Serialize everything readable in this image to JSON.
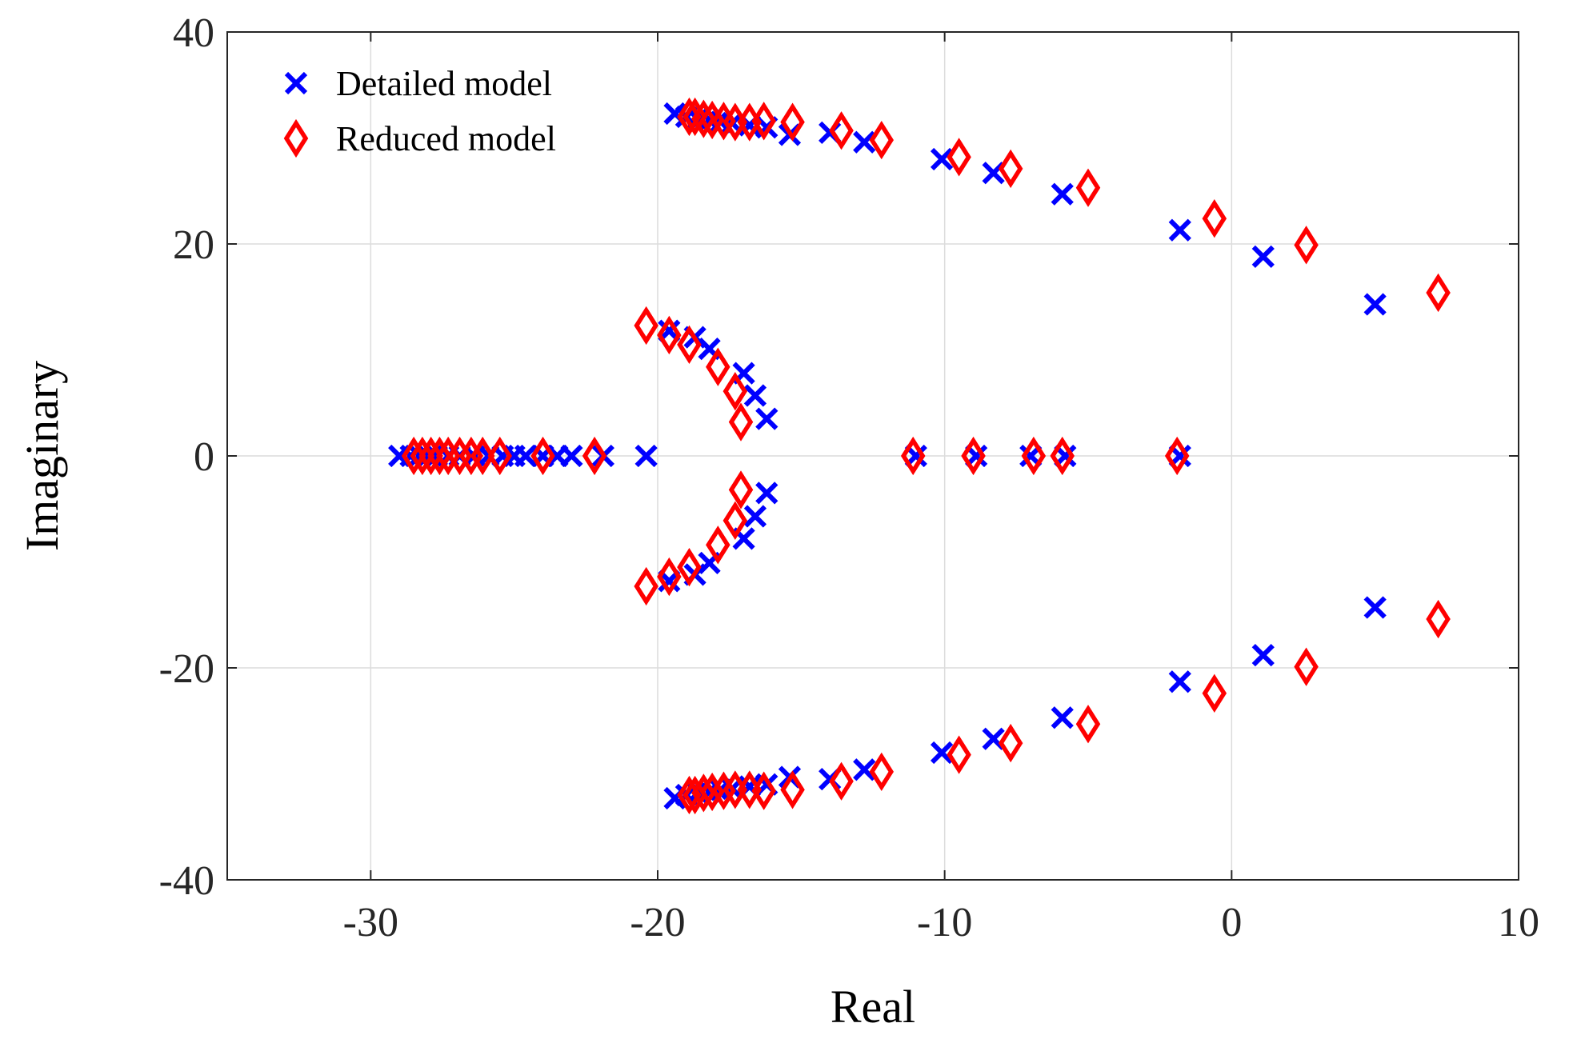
{
  "chart_data": {
    "type": "scatter",
    "title": "",
    "xlabel": "Real",
    "ylabel": "Imaginary",
    "xlim": [
      -35,
      10
    ],
    "ylim": [
      -40,
      40
    ],
    "xticks": [
      -30,
      -20,
      -10,
      0,
      10
    ],
    "yticks": [
      -40,
      -20,
      0,
      20,
      40
    ],
    "xtick_labels": [
      "-30",
      "-20",
      "-10",
      "0",
      "10"
    ],
    "ytick_labels": [
      "-40",
      "-20",
      "0",
      "20",
      "40"
    ],
    "grid": true,
    "legend_position": "top-left",
    "series": [
      {
        "name": "Detailed model",
        "marker": "x",
        "color": "#0000ff",
        "points": [
          [
            -29.0,
            0
          ],
          [
            -28.6,
            0
          ],
          [
            -28.3,
            0
          ],
          [
            -28.0,
            0
          ],
          [
            -27.7,
            0
          ],
          [
            -27.3,
            0
          ],
          [
            -26.9,
            0
          ],
          [
            -26.4,
            0
          ],
          [
            -25.9,
            0
          ],
          [
            -25.4,
            0
          ],
          [
            -25.0,
            0
          ],
          [
            -24.6,
            0
          ],
          [
            -24.0,
            0
          ],
          [
            -23.5,
            0
          ],
          [
            -23.0,
            0
          ],
          [
            -21.9,
            0
          ],
          [
            -20.4,
            0
          ],
          [
            -19.4,
            32.3
          ],
          [
            -19.0,
            32.0
          ],
          [
            -18.6,
            31.8
          ],
          [
            -18.2,
            31.7
          ],
          [
            -17.8,
            31.5
          ],
          [
            -17.4,
            31.4
          ],
          [
            -16.8,
            31.2
          ],
          [
            -16.2,
            31.0
          ],
          [
            -15.4,
            30.3
          ],
          [
            -14.0,
            30.5
          ],
          [
            -12.8,
            29.6
          ],
          [
            -10.1,
            28.0
          ],
          [
            -8.3,
            26.7
          ],
          [
            -5.9,
            24.7
          ],
          [
            -1.8,
            21.3
          ],
          [
            1.1,
            18.8
          ],
          [
            5.0,
            14.3
          ],
          [
            -19.4,
            -32.3
          ],
          [
            -19.0,
            -32.0
          ],
          [
            -18.6,
            -31.8
          ],
          [
            -18.2,
            -31.7
          ],
          [
            -17.8,
            -31.5
          ],
          [
            -17.4,
            -31.4
          ],
          [
            -16.8,
            -31.2
          ],
          [
            -16.2,
            -31.0
          ],
          [
            -15.4,
            -30.3
          ],
          [
            -14.0,
            -30.5
          ],
          [
            -12.8,
            -29.6
          ],
          [
            -10.1,
            -28.0
          ],
          [
            -8.3,
            -26.7
          ],
          [
            -5.9,
            -24.7
          ],
          [
            -1.8,
            -21.3
          ],
          [
            1.1,
            -18.8
          ],
          [
            5.0,
            -14.3
          ],
          [
            -19.6,
            11.8
          ],
          [
            -18.7,
            11.2
          ],
          [
            -18.2,
            10.1
          ],
          [
            -17.0,
            7.8
          ],
          [
            -16.6,
            5.7
          ],
          [
            -16.2,
            3.5
          ],
          [
            -19.6,
            -11.8
          ],
          [
            -18.7,
            -11.2
          ],
          [
            -18.2,
            -10.1
          ],
          [
            -17.0,
            -7.8
          ],
          [
            -16.6,
            -5.7
          ],
          [
            -16.2,
            -3.5
          ],
          [
            -11.0,
            0
          ],
          [
            -8.9,
            0
          ],
          [
            -7.0,
            0
          ],
          [
            -5.8,
            0
          ],
          [
            -1.8,
            0
          ]
        ]
      },
      {
        "name": "Reduced model",
        "marker": "diamond",
        "color": "#ff0000",
        "points": [
          [
            -28.5,
            0
          ],
          [
            -28.2,
            0
          ],
          [
            -27.9,
            0
          ],
          [
            -27.6,
            0
          ],
          [
            -27.3,
            0
          ],
          [
            -26.9,
            0
          ],
          [
            -26.5,
            0
          ],
          [
            -26.1,
            0
          ],
          [
            -25.5,
            0
          ],
          [
            -24.0,
            0
          ],
          [
            -22.2,
            0
          ],
          [
            -18.9,
            32.0
          ],
          [
            -18.7,
            32.0
          ],
          [
            -18.4,
            31.8
          ],
          [
            -18.1,
            31.7
          ],
          [
            -17.7,
            31.6
          ],
          [
            -17.3,
            31.5
          ],
          [
            -16.8,
            31.5
          ],
          [
            -16.3,
            31.6
          ],
          [
            -15.3,
            31.5
          ],
          [
            -13.6,
            30.7
          ],
          [
            -12.2,
            29.8
          ],
          [
            -9.5,
            28.2
          ],
          [
            -7.7,
            27.1
          ],
          [
            -5.0,
            25.3
          ],
          [
            -0.6,
            22.4
          ],
          [
            2.6,
            19.9
          ],
          [
            7.2,
            15.4
          ],
          [
            -18.9,
            -32.0
          ],
          [
            -18.7,
            -32.0
          ],
          [
            -18.4,
            -31.8
          ],
          [
            -18.1,
            -31.7
          ],
          [
            -17.7,
            -31.6
          ],
          [
            -17.3,
            -31.5
          ],
          [
            -16.8,
            -31.5
          ],
          [
            -16.3,
            -31.6
          ],
          [
            -15.3,
            -31.5
          ],
          [
            -13.6,
            -30.7
          ],
          [
            -12.2,
            -29.8
          ],
          [
            -9.5,
            -28.2
          ],
          [
            -7.7,
            -27.1
          ],
          [
            -5.0,
            -25.3
          ],
          [
            -0.6,
            -22.4
          ],
          [
            2.6,
            -19.9
          ],
          [
            7.2,
            -15.4
          ],
          [
            -20.4,
            12.3
          ],
          [
            -19.6,
            11.4
          ],
          [
            -18.9,
            10.5
          ],
          [
            -17.9,
            8.4
          ],
          [
            -17.3,
            6.1
          ],
          [
            -17.1,
            3.2
          ],
          [
            -20.4,
            -12.3
          ],
          [
            -19.6,
            -11.4
          ],
          [
            -18.9,
            -10.5
          ],
          [
            -17.9,
            -8.4
          ],
          [
            -17.3,
            -6.1
          ],
          [
            -17.1,
            -3.2
          ],
          [
            -11.1,
            0
          ],
          [
            -9.0,
            0
          ],
          [
            -6.9,
            0
          ],
          [
            -5.9,
            0
          ],
          [
            -1.9,
            0
          ]
        ]
      }
    ]
  }
}
